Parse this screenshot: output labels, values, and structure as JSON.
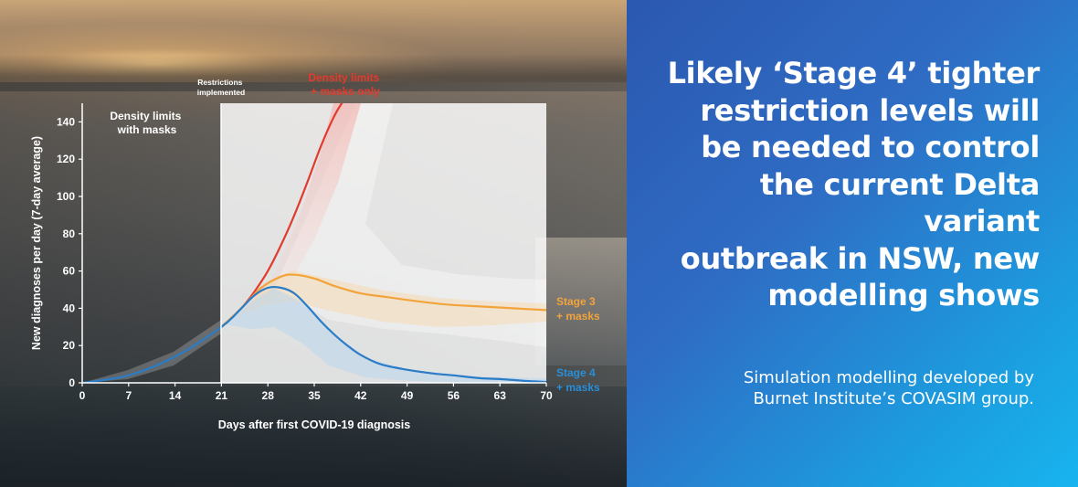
{
  "headline": {
    "line1": "Likely ‘Stage 4’ tighter",
    "line2": "restriction levels will",
    "line3": "be needed to control",
    "line4": "the current Delta variant",
    "line5": "outbreak in NSW, new",
    "line6": "modelling shows"
  },
  "credit": {
    "line1": "Simulation modelling developed by",
    "line2": "Burnet Institute’s COVASIM group."
  },
  "colors": {
    "red": "#e33a2e",
    "orange": "#f2a43b",
    "blue": "#2a7cc7",
    "panel": "#2f6cc4"
  },
  "chart_data": {
    "type": "line",
    "title": "",
    "xlabel": "Days after first COVID-19 diagnosis",
    "ylabel": "New diagnoses per day (7-day average)",
    "xlim": [
      0,
      70
    ],
    "ylim": [
      0,
      150
    ],
    "xticks": [
      0,
      7,
      14,
      21,
      28,
      35,
      42,
      49,
      56,
      63,
      70
    ],
    "yticks": [
      0,
      20,
      40,
      60,
      80,
      100,
      120,
      140
    ],
    "grid": false,
    "annotations": {
      "restrictions": "Restrictions implemented",
      "restrictions_line1": "Restrictions",
      "restrictions_line2": "implemented",
      "restrictions_day": 21,
      "pre_period_line1": "Density limits",
      "pre_period_line2": "with masks"
    },
    "series": [
      {
        "name": "Density limits + masks only",
        "label_line1": "Density limits",
        "label_line2": "+ masks only",
        "color": "#e33a2e",
        "x": [
          21,
          24,
          26,
          28,
          30,
          32,
          34,
          36,
          38,
          39.5
        ],
        "y": [
          30,
          40,
          49,
          60,
          74,
          90,
          108,
          127,
          143,
          152
        ]
      },
      {
        "name": "Stage 3 + masks",
        "label_line1": "Stage 3",
        "label_line2": "+ masks",
        "color": "#f2a43b",
        "x": [
          21,
          24,
          27,
          30,
          32,
          35,
          38,
          42,
          46,
          50,
          55,
          60,
          65,
          70
        ],
        "y": [
          30,
          40,
          51,
          57,
          58,
          56,
          52,
          48,
          46,
          44,
          42,
          41,
          40,
          39
        ]
      },
      {
        "name": "Stage 4 + masks",
        "label_line1": "Stage 4",
        "label_line2": "+ masks",
        "color": "#2a7cc7",
        "x": [
          0,
          7,
          14,
          21,
          24,
          26,
          28,
          30,
          32,
          34,
          36,
          38,
          40,
          42,
          45,
          49,
          53,
          56,
          60,
          63,
          67,
          70
        ],
        "y": [
          0,
          4,
          14,
          30,
          40,
          47,
          51,
          51,
          48,
          41,
          33,
          26,
          20,
          15,
          10,
          7,
          5,
          4,
          2.5,
          2,
          1,
          0.5
        ]
      }
    ]
  }
}
